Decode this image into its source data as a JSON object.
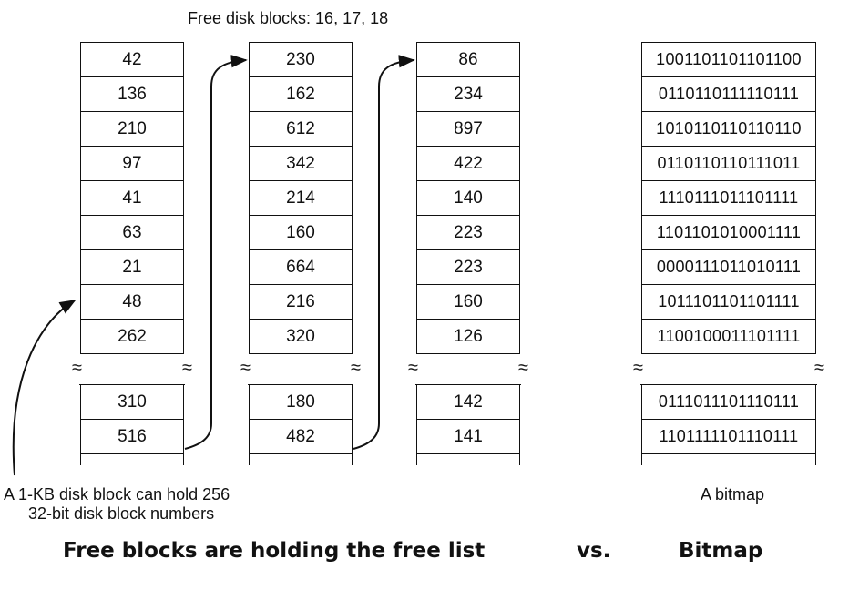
{
  "header": {
    "free_blocks": "Free disk blocks: 16, 17, 18"
  },
  "columns": [
    {
      "top": [
        "42",
        "136",
        "210",
        "97",
        "41",
        "63",
        "21",
        "48",
        "262"
      ],
      "bottom": [
        "310",
        "516"
      ]
    },
    {
      "top": [
        "230",
        "162",
        "612",
        "342",
        "214",
        "160",
        "664",
        "216",
        "320"
      ],
      "bottom": [
        "180",
        "482"
      ]
    },
    {
      "top": [
        "86",
        "234",
        "897",
        "422",
        "140",
        "223",
        "223",
        "160",
        "126"
      ],
      "bottom": [
        "142",
        "141"
      ]
    }
  ],
  "bitmap": {
    "top": [
      "1001101101101100",
      "0110110111110111",
      "1010110110110110",
      "0110110110111011",
      "1110111011101111",
      "1101101010001111",
      "0000111011010111",
      "1011101101101111",
      "1100100011101111"
    ],
    "bottom": [
      "0111011101110111",
      "1101111101110111"
    ],
    "caption": "A bitmap"
  },
  "annotation": {
    "line1": "A 1-KB disk block can hold 256",
    "line2": "32-bit disk block numbers"
  },
  "footer": {
    "left": "Free blocks are holding the free list",
    "middle": "vs.",
    "right": "Bitmap"
  },
  "break_symbol": "≈"
}
